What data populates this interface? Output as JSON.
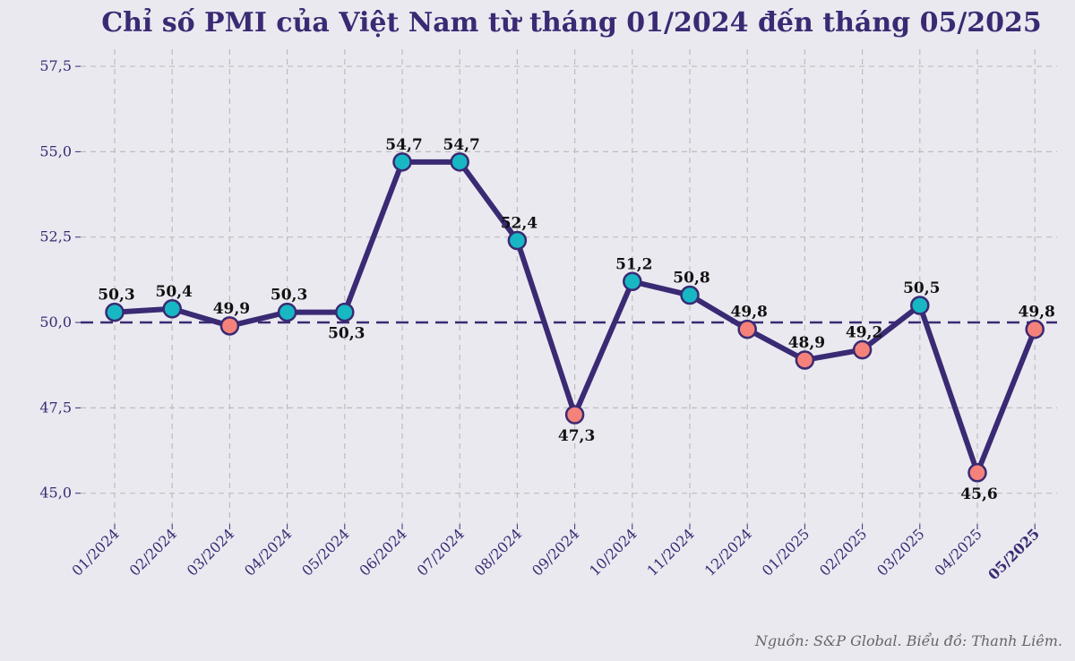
{
  "chart_data": {
    "type": "line",
    "title": "Chỉ số PMI của Việt Nam từ tháng 01/2024 đến tháng 05/2025",
    "xlabel": "",
    "ylabel": "",
    "categories": [
      "01/2024",
      "02/2024",
      "03/2024",
      "04/2024",
      "05/2024",
      "06/2024",
      "07/2024",
      "08/2024",
      "09/2024",
      "10/2024",
      "11/2024",
      "12/2024",
      "01/2025",
      "02/2025",
      "03/2025",
      "04/2025",
      "05/2025"
    ],
    "series": [
      {
        "values": [
          50.3,
          50.4,
          49.9,
          50.3,
          50.3,
          54.7,
          54.7,
          52.4,
          47.3,
          51.2,
          50.8,
          49.8,
          48.9,
          49.2,
          50.5,
          45.6,
          49.8
        ]
      }
    ],
    "value_labels": [
      "50,3",
      "50,4",
      "49,9",
      "50,3",
      "50,3",
      "54,7",
      "54,7",
      "52,4",
      "47,3",
      "51,2",
      "50,8",
      "49,8",
      "48,9",
      "49,2",
      "50,5",
      "45,6",
      "49,8"
    ],
    "label_position": [
      "above",
      "above",
      "above",
      "above",
      "below",
      "above",
      "above",
      "above",
      "below",
      "above",
      "above",
      "above",
      "above",
      "above",
      "above",
      "below",
      "above"
    ],
    "ylim": [
      44.1,
      58.0
    ],
    "yticks": [
      45.0,
      47.5,
      50.0,
      52.5,
      55.0,
      57.5
    ],
    "ytick_labels": [
      "45,0",
      "47,5",
      "50,0",
      "52,5",
      "55,0",
      "57,5"
    ],
    "reference_line": 50.0,
    "grid": true,
    "highlight_category_index": 16,
    "colors": {
      "background": "#eae9f0",
      "line": "#3a2a73",
      "above_threshold": "#17b8c4",
      "below_threshold": "#f4827a",
      "marker_edge": "#3a2a73",
      "grid": "#bdbdbd",
      "reference": "#3a2a73",
      "tick_text": "#3a2a73",
      "highlight_tick": "#ee1111",
      "title": "#3a2a73"
    },
    "source": "Nguồn: S&P Global. Biểu đồ: Thanh Liêm."
  }
}
